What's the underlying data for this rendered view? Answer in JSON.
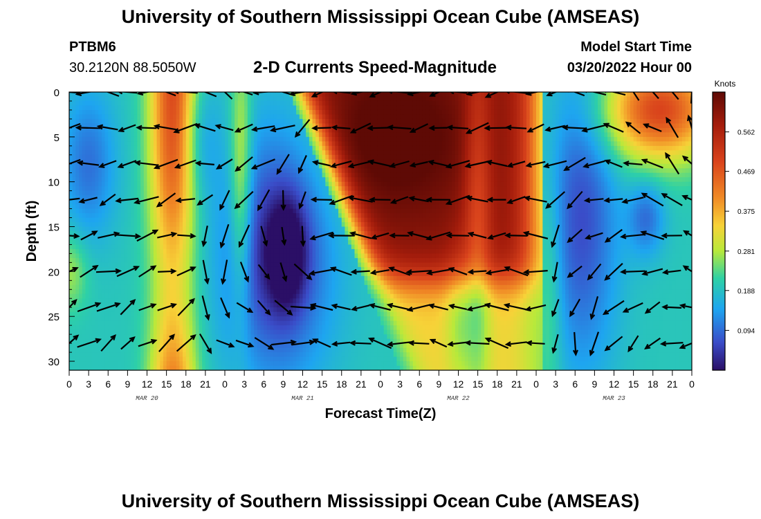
{
  "header": {
    "title": "University of Southern Mississippi Ocean Cube (AMSEAS)",
    "station": "PTBM6",
    "coordinates": "30.2120N  88.5050W",
    "subtitle": "2-D Currents Speed-Magnitude",
    "model_start_label": "Model Start Time",
    "model_start_value": "03/20/2022 Hour 00"
  },
  "footer": {
    "title": "University of Southern Mississippi Ocean Cube (AMSEAS)"
  },
  "chart_data": {
    "type": "heatmap",
    "xlabel": "Forecast Time(Z)",
    "ylabel": "Depth (ft)",
    "x_tick_labels": [
      "0",
      "3",
      "6",
      "9",
      "12",
      "15",
      "18",
      "21",
      "0",
      "3",
      "6",
      "9",
      "12",
      "15",
      "18",
      "21",
      "0",
      "3",
      "6",
      "9",
      "12",
      "15",
      "18",
      "21",
      "0",
      "3",
      "6",
      "9",
      "12",
      "15",
      "18",
      "21",
      "0"
    ],
    "date_labels": [
      "MAR 20",
      "MAR 21",
      "MAR 22",
      "MAR 23"
    ],
    "x_range_hours": [
      0,
      96
    ],
    "y_ticks": [
      0,
      5,
      10,
      15,
      20,
      25,
      30
    ],
    "y_range": [
      0,
      31
    ],
    "colorbar": {
      "title": "Knots",
      "tick_labels": [
        "0.562",
        "0.469",
        "0.375",
        "0.281",
        "0.188",
        "0.094"
      ],
      "tick_values": [
        0.562,
        0.469,
        0.375,
        0.281,
        0.188,
        0.094
      ],
      "range": [
        0,
        0.656
      ]
    },
    "arrows_shown": true
  }
}
